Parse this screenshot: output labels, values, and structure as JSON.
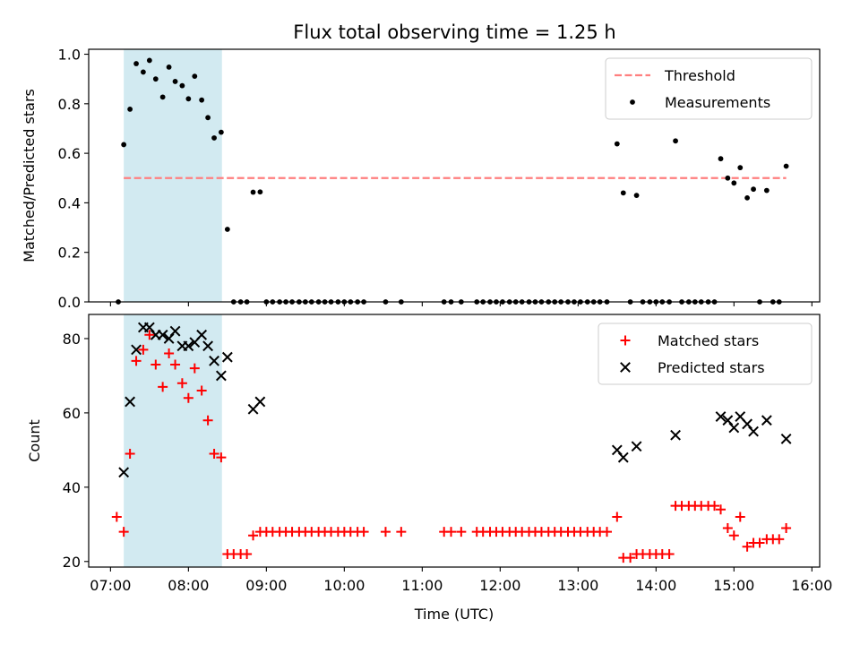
{
  "figure": {
    "title": "Flux total observing time = 1.25 h"
  },
  "chart_data": [
    {
      "type": "scatter",
      "id": "ratio",
      "ylabel": "Matched/Predicted stars",
      "xlabel": "",
      "xlim": [
        6.72,
        16.1
      ],
      "ylim": [
        0.0,
        1.02
      ],
      "yticks": [
        0.0,
        0.2,
        0.4,
        0.6,
        0.8,
        1.0
      ],
      "ytick_labels": [
        "0.0",
        "0.2",
        "0.4",
        "0.6",
        "0.8",
        "1.0"
      ],
      "shaded_span": {
        "x": [
          7.17,
          8.43
        ],
        "color": "#add8e6"
      },
      "legend": {
        "position": "top-right",
        "entries": [
          "Threshold",
          "Measurements"
        ]
      },
      "series": [
        {
          "name": "Threshold",
          "kind": "dashed-line",
          "color": "#ff7f7f",
          "x": [
            7.17,
            15.67
          ],
          "y": [
            0.5,
            0.5
          ]
        },
        {
          "name": "Measurements",
          "kind": "dot",
          "color": "#000000",
          "points": [
            [
              7.1,
              0.0
            ],
            [
              7.17,
              0.635
            ],
            [
              7.25,
              0.778
            ],
            [
              7.33,
              0.962
            ],
            [
              7.42,
              0.928
            ],
            [
              7.5,
              0.975
            ],
            [
              7.58,
              0.9
            ],
            [
              7.67,
              0.827
            ],
            [
              7.75,
              0.948
            ],
            [
              7.83,
              0.89
            ],
            [
              7.92,
              0.873
            ],
            [
              8.0,
              0.82
            ],
            [
              8.08,
              0.911
            ],
            [
              8.17,
              0.815
            ],
            [
              8.25,
              0.744
            ],
            [
              8.33,
              0.662
            ],
            [
              8.42,
              0.685
            ],
            [
              8.5,
              0.293
            ],
            [
              8.58,
              0.0
            ],
            [
              8.67,
              0.0
            ],
            [
              8.75,
              0.0
            ],
            [
              8.83,
              0.443
            ],
            [
              8.92,
              0.444
            ],
            [
              9.0,
              0.0
            ],
            [
              9.08,
              0.0
            ],
            [
              9.17,
              0.0
            ],
            [
              9.25,
              0.0
            ],
            [
              9.33,
              0.0
            ],
            [
              9.42,
              0.0
            ],
            [
              9.5,
              0.0
            ],
            [
              9.58,
              0.0
            ],
            [
              9.67,
              0.0
            ],
            [
              9.75,
              0.0
            ],
            [
              9.83,
              0.0
            ],
            [
              9.92,
              0.0
            ],
            [
              10.0,
              0.0
            ],
            [
              10.08,
              0.0
            ],
            [
              10.17,
              0.0
            ],
            [
              10.25,
              0.0
            ],
            [
              10.53,
              0.0
            ],
            [
              10.73,
              0.0
            ],
            [
              11.28,
              0.0
            ],
            [
              11.37,
              0.0
            ],
            [
              11.5,
              0.0
            ],
            [
              11.7,
              0.0
            ],
            [
              11.78,
              0.0
            ],
            [
              11.87,
              0.0
            ],
            [
              11.95,
              0.0
            ],
            [
              12.03,
              0.0
            ],
            [
              12.12,
              0.0
            ],
            [
              12.2,
              0.0
            ],
            [
              12.28,
              0.0
            ],
            [
              12.37,
              0.0
            ],
            [
              12.45,
              0.0
            ],
            [
              12.53,
              0.0
            ],
            [
              12.62,
              0.0
            ],
            [
              12.7,
              0.0
            ],
            [
              12.78,
              0.0
            ],
            [
              12.87,
              0.0
            ],
            [
              12.95,
              0.0
            ],
            [
              13.03,
              0.0
            ],
            [
              13.12,
              0.0
            ],
            [
              13.2,
              0.0
            ],
            [
              13.28,
              0.0
            ],
            [
              13.37,
              0.0
            ],
            [
              13.5,
              0.638
            ],
            [
              13.58,
              0.44
            ],
            [
              13.67,
              0.0
            ],
            [
              13.75,
              0.43
            ],
            [
              13.83,
              0.0
            ],
            [
              13.92,
              0.0
            ],
            [
              14.0,
              0.0
            ],
            [
              14.08,
              0.0
            ],
            [
              14.17,
              0.0
            ],
            [
              14.25,
              0.65
            ],
            [
              14.33,
              0.0
            ],
            [
              14.42,
              0.0
            ],
            [
              14.5,
              0.0
            ],
            [
              14.58,
              0.0
            ],
            [
              14.67,
              0.0
            ],
            [
              14.75,
              0.0
            ],
            [
              14.83,
              0.578
            ],
            [
              14.92,
              0.5
            ],
            [
              15.0,
              0.48
            ],
            [
              15.08,
              0.542
            ],
            [
              15.17,
              0.42
            ],
            [
              15.25,
              0.455
            ],
            [
              15.33,
              0.0
            ],
            [
              15.42,
              0.45
            ],
            [
              15.5,
              0.0
            ],
            [
              15.58,
              0.0
            ],
            [
              15.67,
              0.548
            ]
          ]
        }
      ]
    },
    {
      "type": "scatter",
      "id": "counts",
      "ylabel": "Count",
      "xlabel": "Time (UTC)",
      "xlim": [
        6.72,
        16.1
      ],
      "ylim": [
        18.5,
        86.5
      ],
      "yticks": [
        20,
        40,
        60,
        80
      ],
      "ytick_labels": [
        "20",
        "40",
        "60",
        "80"
      ],
      "xticks": [
        7,
        8,
        9,
        10,
        11,
        12,
        13,
        14,
        15,
        16
      ],
      "xtick_labels": [
        "07:00",
        "08:00",
        "09:00",
        "10:00",
        "11:00",
        "12:00",
        "13:00",
        "14:00",
        "15:00",
        "16:00"
      ],
      "shaded_span": {
        "x": [
          7.17,
          8.43
        ],
        "color": "#add8e6"
      },
      "legend": {
        "position": "top-right",
        "entries": [
          "Matched stars",
          "Predicted stars"
        ]
      },
      "series": [
        {
          "name": "Matched stars",
          "kind": "plus",
          "color": "#ff0000",
          "points": [
            [
              7.08,
              32
            ],
            [
              7.17,
              28
            ],
            [
              7.25,
              49
            ],
            [
              7.33,
              74
            ],
            [
              7.42,
              77
            ],
            [
              7.5,
              81
            ],
            [
              7.58,
              73
            ],
            [
              7.67,
              67
            ],
            [
              7.75,
              76
            ],
            [
              7.83,
              73
            ],
            [
              7.92,
              68
            ],
            [
              8.0,
              64
            ],
            [
              8.08,
              72
            ],
            [
              8.17,
              66
            ],
            [
              8.25,
              58
            ],
            [
              8.33,
              49
            ],
            [
              8.42,
              48
            ],
            [
              8.5,
              22
            ],
            [
              8.58,
              22
            ],
            [
              8.67,
              22
            ],
            [
              8.75,
              22
            ],
            [
              8.83,
              27
            ],
            [
              8.92,
              28
            ],
            [
              9.0,
              28
            ],
            [
              9.08,
              28
            ],
            [
              9.17,
              28
            ],
            [
              9.25,
              28
            ],
            [
              9.33,
              28
            ],
            [
              9.42,
              28
            ],
            [
              9.5,
              28
            ],
            [
              9.58,
              28
            ],
            [
              9.67,
              28
            ],
            [
              9.75,
              28
            ],
            [
              9.83,
              28
            ],
            [
              9.92,
              28
            ],
            [
              10.0,
              28
            ],
            [
              10.08,
              28
            ],
            [
              10.17,
              28
            ],
            [
              10.25,
              28
            ],
            [
              10.53,
              28
            ],
            [
              10.73,
              28
            ],
            [
              11.28,
              28
            ],
            [
              11.37,
              28
            ],
            [
              11.5,
              28
            ],
            [
              11.7,
              28
            ],
            [
              11.78,
              28
            ],
            [
              11.87,
              28
            ],
            [
              11.95,
              28
            ],
            [
              12.03,
              28
            ],
            [
              12.12,
              28
            ],
            [
              12.2,
              28
            ],
            [
              12.28,
              28
            ],
            [
              12.37,
              28
            ],
            [
              12.45,
              28
            ],
            [
              12.53,
              28
            ],
            [
              12.62,
              28
            ],
            [
              12.7,
              28
            ],
            [
              12.78,
              28
            ],
            [
              12.87,
              28
            ],
            [
              12.95,
              28
            ],
            [
              13.03,
              28
            ],
            [
              13.12,
              28
            ],
            [
              13.2,
              28
            ],
            [
              13.28,
              28
            ],
            [
              13.37,
              28
            ],
            [
              13.5,
              32
            ],
            [
              13.58,
              21
            ],
            [
              13.67,
              21
            ],
            [
              13.75,
              22
            ],
            [
              13.83,
              22
            ],
            [
              13.92,
              22
            ],
            [
              14.0,
              22
            ],
            [
              14.08,
              22
            ],
            [
              14.17,
              22
            ],
            [
              14.25,
              35
            ],
            [
              14.33,
              35
            ],
            [
              14.42,
              35
            ],
            [
              14.5,
              35
            ],
            [
              14.58,
              35
            ],
            [
              14.67,
              35
            ],
            [
              14.75,
              35
            ],
            [
              14.83,
              34
            ],
            [
              14.92,
              29
            ],
            [
              15.0,
              27
            ],
            [
              15.08,
              32
            ],
            [
              15.17,
              24
            ],
            [
              15.25,
              25
            ],
            [
              15.33,
              25
            ],
            [
              15.42,
              26
            ],
            [
              15.5,
              26
            ],
            [
              15.58,
              26
            ],
            [
              15.67,
              29
            ]
          ]
        },
        {
          "name": "Predicted stars",
          "kind": "x",
          "color": "#000000",
          "points": [
            [
              7.17,
              44
            ],
            [
              7.25,
              63
            ],
            [
              7.33,
              77
            ],
            [
              7.42,
              83
            ],
            [
              7.5,
              83
            ],
            [
              7.58,
              81
            ],
            [
              7.67,
              81
            ],
            [
              7.75,
              80
            ],
            [
              7.83,
              82
            ],
            [
              7.92,
              78
            ],
            [
              8.0,
              78
            ],
            [
              8.08,
              79
            ],
            [
              8.17,
              81
            ],
            [
              8.25,
              78
            ],
            [
              8.33,
              74
            ],
            [
              8.42,
              70
            ],
            [
              8.5,
              75
            ],
            [
              8.83,
              61
            ],
            [
              8.92,
              63
            ],
            [
              13.5,
              50
            ],
            [
              13.58,
              48
            ],
            [
              13.75,
              51
            ],
            [
              14.25,
              54
            ],
            [
              14.83,
              59
            ],
            [
              14.92,
              58
            ],
            [
              15.0,
              56
            ],
            [
              15.08,
              59
            ],
            [
              15.17,
              57
            ],
            [
              15.25,
              55
            ],
            [
              15.42,
              58
            ],
            [
              15.67,
              53
            ]
          ]
        }
      ]
    }
  ]
}
